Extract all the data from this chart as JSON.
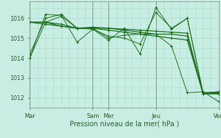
{
  "background_color": "#c8eee4",
  "grid_color": "#a8d8cc",
  "line_color": "#1a6b1a",
  "xlabel": "Pression niveau de la mer( hPa )",
  "ylim": [
    1011.5,
    1016.85
  ],
  "xlim": [
    0,
    12
  ],
  "series": [
    [
      1014.0,
      1015.8,
      1016.1,
      1015.5,
      1015.5,
      1015.0,
      1015.15,
      1015.2,
      1015.2,
      1014.6,
      1012.25,
      1012.3,
      1011.8
    ],
    [
      1014.2,
      1016.0,
      1016.2,
      1015.5,
      1015.45,
      1015.1,
      1015.0,
      1014.7,
      1016.3,
      1015.5,
      1016.0,
      1012.2,
      1012.3
    ],
    [
      1015.8,
      1015.8,
      1015.6,
      1015.5,
      1015.5,
      1015.5,
      1015.4,
      1015.3,
      1015.2,
      1015.2,
      1015.1,
      1012.25,
      1012.25
    ],
    [
      1015.8,
      1015.7,
      1015.6,
      1015.5,
      1015.5,
      1015.4,
      1015.3,
      1015.2,
      1015.1,
      1015.0,
      1014.9,
      1012.2,
      1012.2
    ],
    [
      1015.8,
      1015.8,
      1015.7,
      1015.5,
      1015.55,
      1015.5,
      1015.45,
      1015.4,
      1015.35,
      1015.3,
      1015.25,
      1012.2,
      1012.2
    ],
    [
      1014.0,
      1016.2,
      1016.15,
      1014.8,
      1015.45,
      1014.9,
      1015.5,
      1014.2,
      1016.55,
      1015.45,
      1016.0,
      1012.25,
      1012.3
    ]
  ],
  "ytick_vals": [
    1012,
    1013,
    1014,
    1015,
    1016
  ],
  "day_lines": [
    0,
    4,
    5,
    8,
    12
  ],
  "xtick_pos": [
    0,
    4,
    5,
    8,
    12
  ],
  "xtick_labels": [
    "Mar",
    "Sam",
    "Mer",
    "Jeu",
    "Ven"
  ],
  "day_line_color": "#778877",
  "ytick_fontsize": 6,
  "xtick_fontsize": 6,
  "xlabel_fontsize": 7
}
